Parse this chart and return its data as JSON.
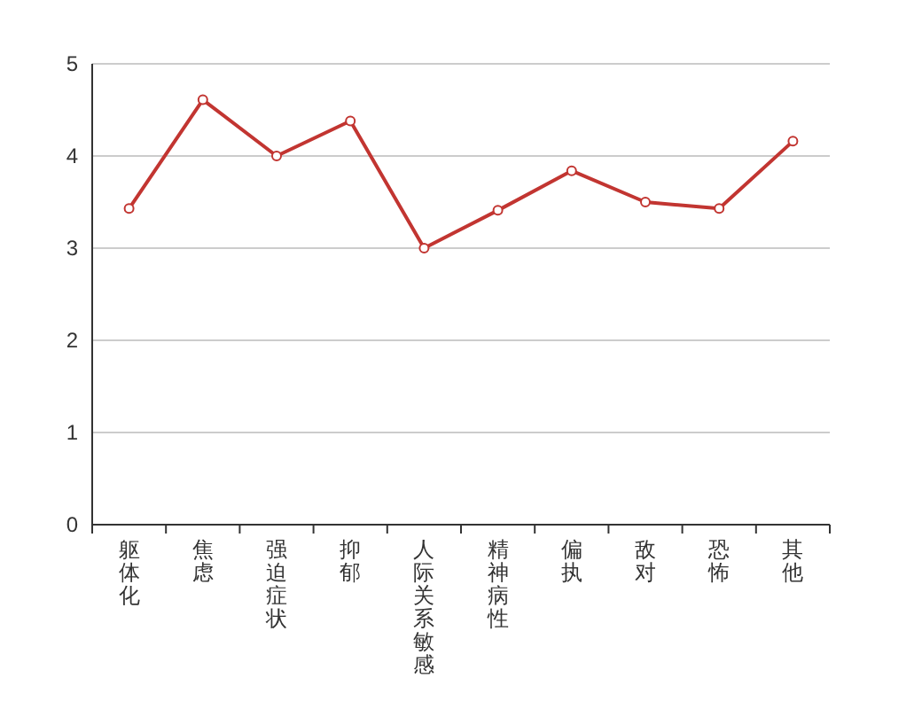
{
  "chart_data": {
    "type": "line",
    "categories": [
      "躯体化",
      "焦虑",
      "强迫症状",
      "抑郁",
      "人际关系敏感",
      "精神病性",
      "偏执",
      "敌对",
      "恐怖",
      "其他"
    ],
    "series": [
      {
        "color": "#c23531",
        "values": [
          3.43,
          4.61,
          4.0,
          4.38,
          3.0,
          3.41,
          3.84,
          3.5,
          3.43,
          4.16
        ]
      }
    ],
    "ylim": [
      0,
      5
    ],
    "yticks": [
      0,
      1,
      2,
      3,
      4,
      5
    ],
    "grid": "y",
    "marker": "circle"
  }
}
